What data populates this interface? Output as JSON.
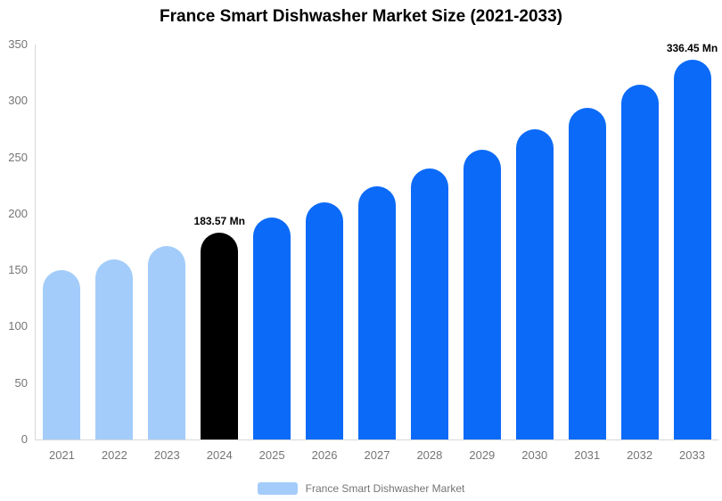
{
  "chart_data": {
    "type": "bar",
    "title": "France Smart Dishwasher Market Size (2021-2033)",
    "categories": [
      "2021",
      "2022",
      "2023",
      "2024",
      "2025",
      "2026",
      "2027",
      "2028",
      "2029",
      "2030",
      "2031",
      "2032",
      "2033"
    ],
    "values": [
      150,
      160,
      171.5,
      183.57,
      196.4,
      210,
      224.6,
      240.2,
      257,
      274.9,
      294,
      314.5,
      336.45
    ],
    "unit": "Mn",
    "xlabel": "",
    "ylabel": "",
    "ylim": [
      0,
      350
    ],
    "yticks": [
      0,
      50,
      100,
      150,
      200,
      250,
      300,
      350
    ],
    "grid": false,
    "bar_corner": "rounded-top",
    "bar_colors": [
      "#a3ccfa",
      "#a3ccfa",
      "#a3ccfa",
      "#000000",
      "#0b6af7",
      "#0b6af7",
      "#0b6af7",
      "#0b6af7",
      "#0b6af7",
      "#0b6af7",
      "#0b6af7",
      "#0b6af7",
      "#0b6af7"
    ],
    "annotations": [
      {
        "category": "2024",
        "text": "183.57 Mn"
      },
      {
        "category": "2033",
        "text": "336.45 Mn"
      }
    ],
    "legend_position": "bottom",
    "legend_label": "France Smart Dishwasher Market",
    "legend_swatch_color": "#a3ccfa"
  },
  "colors": {
    "light_blue": "#a3ccfa",
    "blue": "#0b6af7",
    "black": "#000000",
    "axis_line": "#d8d8d8",
    "axis_text": "#757575",
    "annotation_text": "#000000",
    "title_text": "#000000",
    "background": "#ffffff"
  }
}
